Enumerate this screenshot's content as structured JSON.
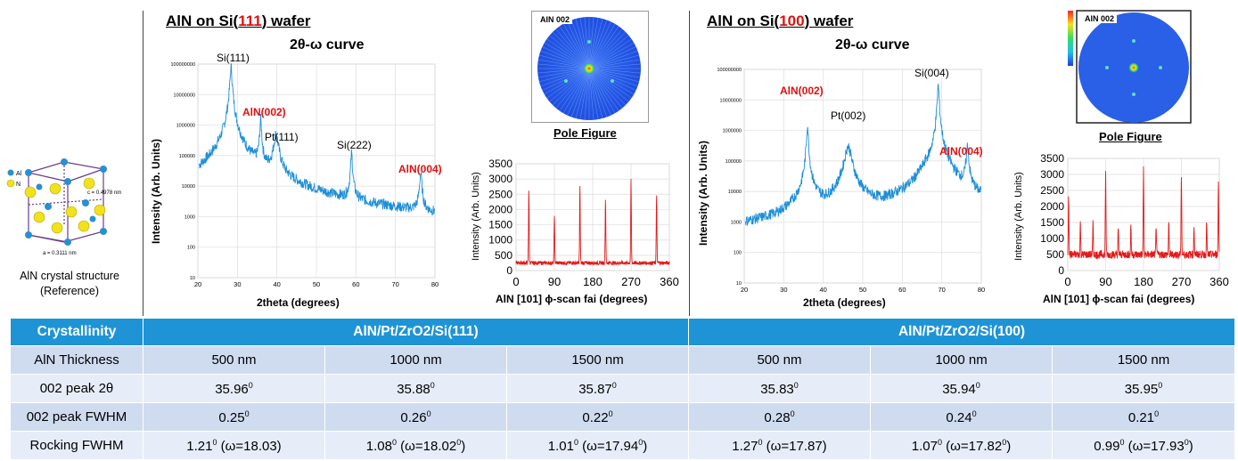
{
  "panels": [
    {
      "title_pre": "AlN on Si(",
      "title_hl": "111",
      "title_post": ") wafer",
      "curve_label": "2θ-ω curve",
      "xrd_ylabel": "Intensity (Arb. Units)",
      "xrd_xlabel": "2theta (degrees)",
      "peaks": {
        "si": "Si(111)",
        "aln002": "AlN(002)",
        "pt": "Pt(111)",
        "si2": "Si(222)",
        "aln004": "AlN(004)"
      },
      "pole_tag": "AlN 002",
      "pole_caption": "Pole Figure",
      "phi_ylabel": "Intensity (Arb. Units)",
      "phi_xlabel": "AlN [101] ϕ-scan fai (degrees)"
    },
    {
      "title_pre": "AlN on Si(",
      "title_hl": "100",
      "title_post": ") wafer",
      "curve_label": "2θ-ω curve",
      "xrd_ylabel": "Intensity (Arb. Units)",
      "xrd_xlabel": "2theta (degrees)",
      "peaks": {
        "aln002": "AlN(002)",
        "pt": "Pt(002)",
        "si": "Si(004)",
        "aln004": "AlN(004)"
      },
      "pole_tag": "AlN 002",
      "pole_caption": "Pole Figure",
      "phi_ylabel": "Intensity (Arb. Units)",
      "phi_xlabel": "AlN [101] ϕ-scan fai (degrees)"
    }
  ],
  "structure": {
    "caption_line1": "AlN crystal structure",
    "caption_line2": "(Reference)",
    "legend_al": "Al",
    "legend_n": "N",
    "c_label": "c = 0.4978 nm",
    "a_label": "a = 0.3111 nm"
  },
  "table": {
    "header": [
      "Crystallinity",
      "AlN/Pt/ZrO2/Si(111)",
      "AlN/Pt/ZrO2/Si(100)"
    ],
    "rows": [
      {
        "label": "AlN Thickness",
        "cells": [
          "500 nm",
          "1000 nm",
          "1500 nm",
          "500 nm",
          "1000 nm",
          "1500 nm"
        ]
      },
      {
        "label": "002 peak 2θ",
        "cells": [
          "35.96",
          "35.88",
          "35.87",
          "35.83",
          "35.94",
          "35.95"
        ],
        "sup": "0"
      },
      {
        "label": "002 peak FWHM",
        "cells": [
          "0.25",
          "0.26",
          "0.22",
          "0.28",
          "0.24",
          "0.21"
        ],
        "sup": "0"
      },
      {
        "label": "Rocking FWHM",
        "cells": [
          {
            "v": "1.21",
            "w": "(ω=18.03)",
            "wsup": false
          },
          {
            "v": "1.08",
            "w": "(ω=18.02",
            "wsup": true
          },
          {
            "v": "1.01",
            "w": "(ω=17.94",
            "wsup": true
          },
          {
            "v": "1.27",
            "w": "(ω=17.87)",
            "wsup": false
          },
          {
            "v": "1.07",
            "w": "(ω=17.82",
            "wsup": true
          },
          {
            "v": "0.99",
            "w": "(ω=17.93",
            "wsup": true
          }
        ],
        "sup": "0"
      }
    ]
  },
  "chart_data": [
    {
      "type": "line",
      "title": "2θ-ω curve",
      "xlabel": "2theta (degrees)",
      "ylabel": "Intensity (Arb. Units)",
      "xlim": [
        20,
        80
      ],
      "ylim": [
        10,
        100000000
      ],
      "yscale": "log",
      "xticks": [
        20,
        30,
        40,
        50,
        60,
        70,
        80
      ],
      "yticks": [
        "10",
        "100",
        "1000",
        "10000",
        "100000",
        "1000000",
        "10000000",
        "100000000"
      ],
      "color": "#1e8fd8",
      "baseline": [
        [
          20,
          150
        ],
        [
          25,
          400
        ],
        [
          27,
          900
        ],
        [
          33,
          500
        ],
        [
          37,
          800
        ],
        [
          45,
          300
        ],
        [
          55,
          130
        ],
        [
          64,
          100
        ],
        [
          72,
          110
        ],
        [
          80,
          100
        ]
      ],
      "peaks": [
        [
          28.4,
          80000000,
          0.35
        ],
        [
          35.9,
          1500000,
          0.3
        ],
        [
          39.8,
          500000,
          0.8
        ],
        [
          58.9,
          120000,
          0.3
        ],
        [
          76.4,
          25000,
          0.4
        ]
      ]
    },
    {
      "type": "line",
      "xlabel": "AlN [101] ϕ-scan fai (degrees)",
      "ylabel": "Intensity (Arb. Units)",
      "xlim": [
        0,
        360
      ],
      "ylim": [
        0,
        3500
      ],
      "xticks": [
        0,
        90,
        180,
        270,
        360
      ],
      "yticks": [
        0,
        500,
        1000,
        1500,
        2000,
        2500,
        3000,
        3500
      ],
      "color": "#e31a1a",
      "baseline_level": 250,
      "peaks": [
        [
          30,
          2650
        ],
        [
          90,
          1850
        ],
        [
          150,
          2720
        ],
        [
          210,
          2320
        ],
        [
          270,
          3000
        ],
        [
          330,
          2450
        ]
      ]
    },
    {
      "type": "line",
      "title": "2θ-ω curve",
      "xlabel": "2theta (degrees)",
      "ylabel": "Intensity (Arb. Units)",
      "xlim": [
        20,
        80
      ],
      "ylim": [
        10,
        100000000
      ],
      "yscale": "log",
      "xticks": [
        20,
        30,
        40,
        50,
        60,
        70,
        80
      ],
      "yticks": [
        "10",
        "100",
        "1000",
        "10000",
        "100000",
        "1000000",
        "10000000",
        "100000000"
      ],
      "color": "#1e8fd8",
      "baseline": [
        [
          20,
          300
        ],
        [
          28,
          400
        ],
        [
          33,
          1200
        ],
        [
          38,
          2500
        ],
        [
          41,
          700
        ],
        [
          50,
          1500
        ],
        [
          56,
          500
        ],
        [
          62,
          1800
        ],
        [
          66,
          25000
        ],
        [
          72,
          3000
        ],
        [
          80,
          600
        ]
      ],
      "peaks": [
        [
          36.0,
          1500000,
          0.3
        ],
        [
          46.3,
          300000,
          1.2
        ],
        [
          69.1,
          30000000,
          0.3
        ],
        [
          76.5,
          300000,
          0.4
        ]
      ]
    },
    {
      "type": "line",
      "xlabel": "AlN [101] ϕ-scan fai (degrees)",
      "ylabel": "Intensity (Arb. Units)",
      "xlim": [
        0,
        360
      ],
      "ylim": [
        0,
        3500
      ],
      "xticks": [
        0,
        90,
        180,
        270,
        360
      ],
      "yticks": [
        0,
        500,
        1000,
        1500,
        2000,
        2500,
        3000,
        3500
      ],
      "color": "#e31a1a",
      "baseline_level": 500,
      "peaks": [
        [
          2,
          2400
        ],
        [
          30,
          1500
        ],
        [
          60,
          1450
        ],
        [
          90,
          3100
        ],
        [
          120,
          1300
        ],
        [
          150,
          1450
        ],
        [
          180,
          3250
        ],
        [
          210,
          1400
        ],
        [
          240,
          1500
        ],
        [
          270,
          3000
        ],
        [
          300,
          1400
        ],
        [
          330,
          1550
        ],
        [
          358,
          2800
        ]
      ]
    }
  ]
}
